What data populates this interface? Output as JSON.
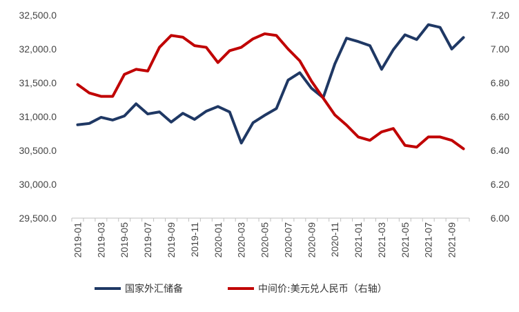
{
  "chart_data": {
    "type": "line",
    "title": "",
    "x": [
      "2019-01",
      "2019-02",
      "2019-03",
      "2019-04",
      "2019-05",
      "2019-06",
      "2019-07",
      "2019-08",
      "2019-09",
      "2019-10",
      "2019-11",
      "2019-12",
      "2020-01",
      "2020-02",
      "2020-03",
      "2020-04",
      "2020-05",
      "2020-06",
      "2020-07",
      "2020-08",
      "2020-09",
      "2020-10",
      "2020-11",
      "2020-12",
      "2021-01",
      "2021-02",
      "2021-03",
      "2021-04",
      "2021-05",
      "2021-06",
      "2021-07",
      "2021-08",
      "2021-09",
      "2021-10"
    ],
    "x_tick_labels": [
      "2019-01",
      "2019-03",
      "2019-05",
      "2019-07",
      "2019-09",
      "2019-11",
      "2020-01",
      "2020-03",
      "2020-05",
      "2020-07",
      "2020-09",
      "2020-11",
      "2021-01",
      "2021-03",
      "2021-05",
      "2021-07",
      "2021-09"
    ],
    "y_left": {
      "ylim": [
        29500,
        32500
      ],
      "ticks": [
        "29,500.0",
        "30,000.0",
        "30,500.0",
        "31,000.0",
        "31,500.0",
        "32,000.0",
        "32,500.0"
      ]
    },
    "y_right": {
      "ylim": [
        6.0,
        7.2
      ],
      "ticks": [
        "6.00",
        "6.20",
        "6.40",
        "6.60",
        "6.80",
        "7.00",
        "7.20"
      ]
    },
    "series": [
      {
        "name": "国家外汇储备",
        "axis": "left",
        "color": "#1f3864",
        "values": [
          30880,
          30900,
          30990,
          30950,
          31010,
          31190,
          31040,
          31070,
          30920,
          31050,
          30960,
          31080,
          31150,
          31070,
          30610,
          30910,
          31020,
          31120,
          31540,
          31650,
          31420,
          31280,
          31780,
          32160,
          32110,
          32050,
          31700,
          31990,
          32210,
          32140,
          32360,
          32320,
          32000,
          32170
        ]
      },
      {
        "name": "中间价:美元兑人民币（右轴）",
        "axis": "right",
        "color": "#c00000",
        "values": [
          6.79,
          6.74,
          6.72,
          6.72,
          6.85,
          6.88,
          6.87,
          7.01,
          7.08,
          7.07,
          7.02,
          7.01,
          6.92,
          6.99,
          7.01,
          7.06,
          7.09,
          7.08,
          7.0,
          6.93,
          6.81,
          6.71,
          6.61,
          6.55,
          6.48,
          6.46,
          6.51,
          6.53,
          6.43,
          6.42,
          6.48,
          6.48,
          6.46,
          6.41
        ]
      }
    ],
    "legend": "bottom",
    "grid": false
  }
}
